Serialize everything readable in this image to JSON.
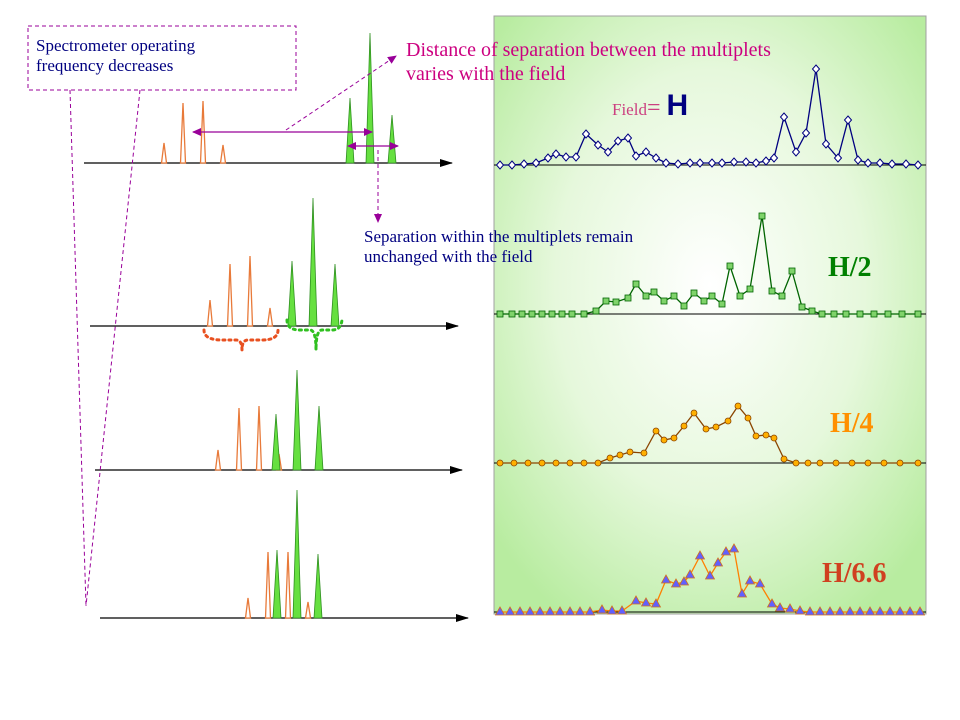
{
  "annotations": {
    "freq_note": [
      "Spectrometer operating",
      "frequency decreases"
    ],
    "distance_note": [
      "Distance of separation between the multiplets",
      "varies with the field"
    ],
    "within_note": [
      "Separation within the multiplets remain",
      "unchanged with the field"
    ]
  },
  "field_label": {
    "prefix": "Field",
    "eq": "= ",
    "value": "H"
  },
  "spectra_labels": [
    "H/2",
    "H/4",
    "H/6.6"
  ],
  "colors": {
    "panel_bg": "#ccf2b8",
    "panel_border": "#a0a0a0",
    "blue_trace": "#000080",
    "green_trace": "#006400",
    "green_marker": "#7fd36a",
    "orange_trace": "#8b4500",
    "orange_marker": "#ffb000",
    "purple_trace": "#ff7f00",
    "purple_marker": "#6060ff",
    "red_peak": "#e87a3a",
    "green_peak": "#66e040",
    "annotation_text": "#000080",
    "distance_text": "#cc0080",
    "arrow": "#990099",
    "label_orange": "#ff9000",
    "label_red": "#d04020"
  }
}
